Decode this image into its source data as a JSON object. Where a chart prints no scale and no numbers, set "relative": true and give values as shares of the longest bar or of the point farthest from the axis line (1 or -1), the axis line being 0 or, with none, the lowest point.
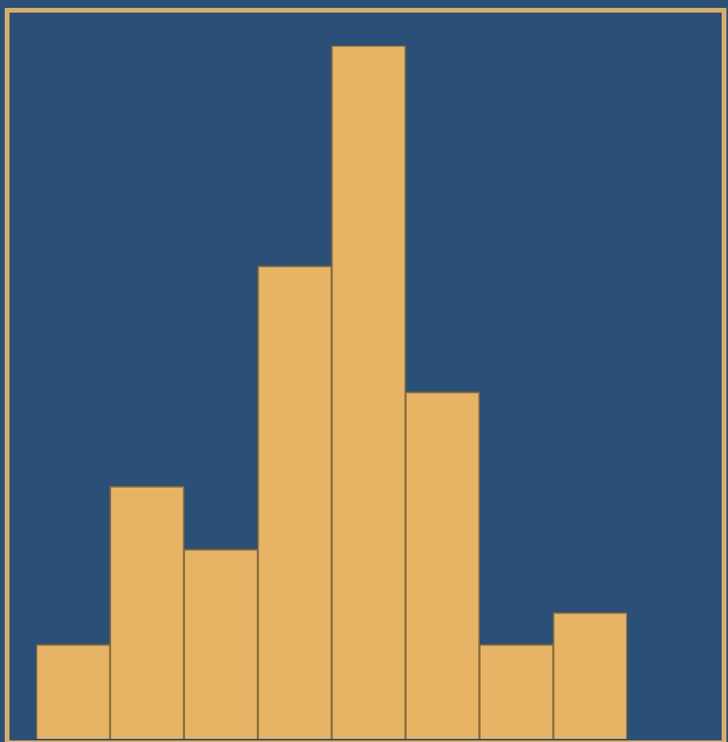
{
  "chart_data": {
    "type": "bar",
    "relative": true,
    "categories": [
      null,
      null,
      null,
      null,
      null,
      null,
      null,
      null
    ],
    "values": [
      0.136,
      0.364,
      0.273,
      0.682,
      1,
      0.5,
      0.136,
      0.182
    ],
    "color": "#e6b464"
  }
}
